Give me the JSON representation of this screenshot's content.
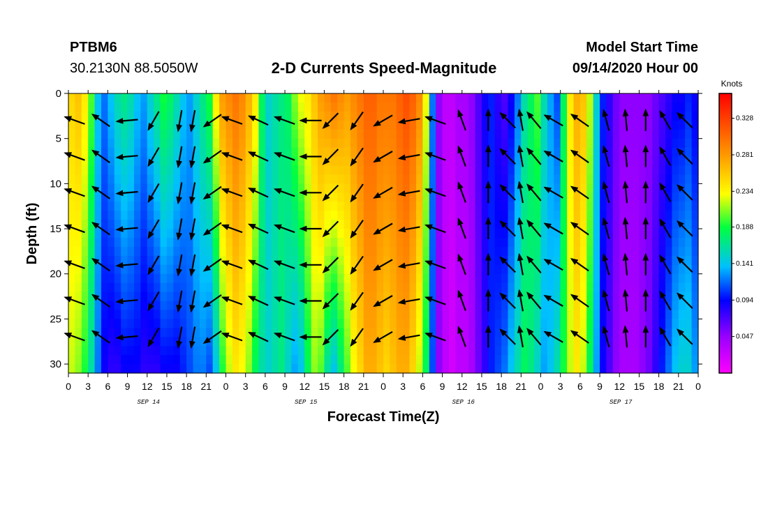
{
  "header": {
    "station_id": "PTBM6",
    "coords": "30.2130N 88.5050W",
    "title": "2-D Currents Speed-Magnitude",
    "model_label": "Model Start Time",
    "model_time": "09/14/2020 Hour 00"
  },
  "chart_data": {
    "type": "heatmap",
    "title": "2-D Currents Speed-Magnitude",
    "xlabel": "Forecast Time(Z)",
    "ylabel": "Depth (ft)",
    "x_range_hours": [
      0,
      96
    ],
    "y_range_ft": [
      0,
      31
    ],
    "x_ticks": [
      "0",
      "3",
      "6",
      "9",
      "12",
      "15",
      "18",
      "21",
      "0",
      "3",
      "6",
      "9",
      "12",
      "15",
      "18",
      "21",
      "0",
      "3",
      "6",
      "9",
      "12",
      "15",
      "18",
      "21",
      "0",
      "3",
      "6",
      "9",
      "12",
      "15",
      "18",
      "21",
      "0"
    ],
    "y_ticks": [
      "0",
      "5",
      "10",
      "15",
      "20",
      "25",
      "30"
    ],
    "date_labels": [
      {
        "hour": 12,
        "text": "SEP 14"
      },
      {
        "hour": 36,
        "text": "SEP 15"
      },
      {
        "hour": 60,
        "text": "SEP 16"
      },
      {
        "hour": 84,
        "text": "SEP 17"
      }
    ],
    "colorbar": {
      "title": "Knots",
      "ticks": [
        "0.328",
        "0.281",
        "0.234",
        "0.188",
        "0.141",
        "0.094",
        "0.047"
      ],
      "range": [
        0.0,
        0.36
      ]
    },
    "speed_profile": {
      "hours": [
        0,
        1,
        2,
        3,
        4,
        5,
        6,
        7,
        8,
        9,
        10,
        11,
        12,
        13,
        14,
        15,
        16,
        17,
        18,
        19,
        20,
        21,
        22,
        23,
        24,
        25,
        26,
        27,
        28,
        29,
        30,
        31,
        32,
        33,
        34,
        35,
        36,
        37,
        38,
        39,
        40,
        41,
        42,
        43,
        44,
        45,
        46,
        47,
        48,
        49,
        50,
        51,
        52,
        53,
        54,
        55,
        56,
        57,
        58,
        59,
        60,
        61,
        62,
        63,
        64,
        65,
        66,
        67,
        68,
        69,
        70,
        71,
        72,
        73,
        74,
        75,
        76,
        77,
        78,
        79,
        80,
        81,
        82,
        83,
        84,
        85,
        86,
        87,
        88,
        89,
        90,
        91,
        92,
        93,
        94,
        95,
        96
      ],
      "surface_knots": [
        0.25,
        0.26,
        0.24,
        0.2,
        0.14,
        0.12,
        0.14,
        0.16,
        0.17,
        0.16,
        0.14,
        0.13,
        0.15,
        0.17,
        0.19,
        0.18,
        0.16,
        0.14,
        0.13,
        0.15,
        0.17,
        0.19,
        0.24,
        0.28,
        0.29,
        0.3,
        0.29,
        0.27,
        0.24,
        0.18,
        0.15,
        0.16,
        0.17,
        0.18,
        0.21,
        0.23,
        0.24,
        0.26,
        0.28,
        0.29,
        0.3,
        0.29,
        0.28,
        0.29,
        0.3,
        0.31,
        0.31,
        0.3,
        0.3,
        0.3,
        0.31,
        0.32,
        0.31,
        0.29,
        0.23,
        0.12,
        0.05,
        0.03,
        0.03,
        0.04,
        0.04,
        0.05,
        0.07,
        0.09,
        0.1,
        0.08,
        0.07,
        0.09,
        0.12,
        0.16,
        0.18,
        0.2,
        0.16,
        0.13,
        0.11,
        0.18,
        0.24,
        0.27,
        0.26,
        0.22,
        0.15,
        0.1,
        0.08,
        0.06,
        0.05,
        0.05,
        0.05,
        0.05,
        0.05,
        0.06,
        0.07,
        0.08,
        0.09,
        0.09,
        0.1,
        0.09,
        0.07
      ],
      "bottom_knots": [
        0.22,
        0.21,
        0.19,
        0.16,
        0.12,
        0.09,
        0.08,
        0.08,
        0.09,
        0.09,
        0.09,
        0.08,
        0.08,
        0.08,
        0.09,
        0.09,
        0.09,
        0.1,
        0.11,
        0.12,
        0.12,
        0.11,
        0.14,
        0.19,
        0.22,
        0.24,
        0.23,
        0.21,
        0.18,
        0.16,
        0.15,
        0.16,
        0.17,
        0.15,
        0.13,
        0.14,
        0.18,
        0.21,
        0.2,
        0.16,
        0.14,
        0.17,
        0.2,
        0.23,
        0.25,
        0.27,
        0.27,
        0.26,
        0.25,
        0.26,
        0.27,
        0.27,
        0.25,
        0.22,
        0.18,
        0.11,
        0.05,
        0.03,
        0.02,
        0.03,
        0.03,
        0.04,
        0.06,
        0.08,
        0.1,
        0.11,
        0.12,
        0.14,
        0.16,
        0.18,
        0.17,
        0.15,
        0.13,
        0.14,
        0.16,
        0.19,
        0.22,
        0.24,
        0.22,
        0.18,
        0.13,
        0.09,
        0.07,
        0.05,
        0.04,
        0.04,
        0.04,
        0.05,
        0.06,
        0.08,
        0.1,
        0.12,
        0.14,
        0.15,
        0.15,
        0.13,
        0.1
      ]
    },
    "arrows": {
      "depths_ft": [
        3,
        7,
        11,
        15,
        19,
        23,
        27
      ],
      "columns": [
        {
          "hour": 1,
          "angle_deg": 200
        },
        {
          "hour": 5,
          "angle_deg": 215
        },
        {
          "hour": 9,
          "angle_deg": 175
        },
        {
          "hour": 13,
          "angle_deg": 120
        },
        {
          "hour": 17,
          "angle_deg": 100
        },
        {
          "hour": 19,
          "angle_deg": 100
        },
        {
          "hour": 22,
          "angle_deg": 145
        },
        {
          "hour": 25,
          "angle_deg": 200
        },
        {
          "hour": 29,
          "angle_deg": 205
        },
        {
          "hour": 33,
          "angle_deg": 200
        },
        {
          "hour": 37,
          "angle_deg": 180
        },
        {
          "hour": 40,
          "angle_deg": 135
        },
        {
          "hour": 44,
          "angle_deg": 125
        },
        {
          "hour": 48,
          "angle_deg": 150
        },
        {
          "hour": 52,
          "angle_deg": 170
        },
        {
          "hour": 56,
          "angle_deg": 200
        },
        {
          "hour": 60,
          "angle_deg": 250
        },
        {
          "hour": 64,
          "angle_deg": 270
        },
        {
          "hour": 67,
          "angle_deg": 225
        },
        {
          "hour": 69,
          "angle_deg": 260
        },
        {
          "hour": 71,
          "angle_deg": 230
        },
        {
          "hour": 74,
          "angle_deg": 210
        },
        {
          "hour": 78,
          "angle_deg": 215
        },
        {
          "hour": 82,
          "angle_deg": 255
        },
        {
          "hour": 85,
          "angle_deg": 265
        },
        {
          "hour": 88,
          "angle_deg": 270
        },
        {
          "hour": 91,
          "angle_deg": 240
        },
        {
          "hour": 94,
          "angle_deg": 225
        }
      ]
    }
  }
}
